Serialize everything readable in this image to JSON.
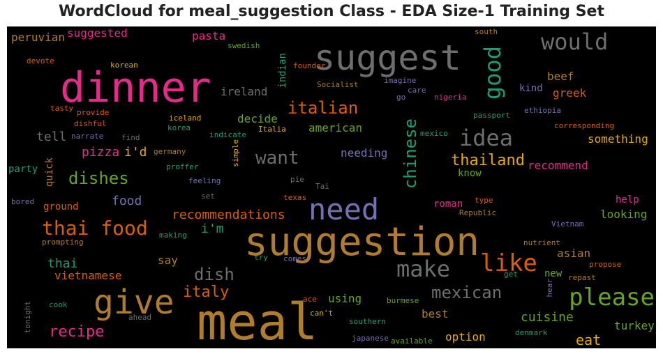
{
  "title": "WordCloud for meal_suggestion Class - EDA Size-1 Training Set",
  "chart_data": {
    "type": "wordcloud",
    "background": "#000000",
    "words": [
      {
        "text": "meal",
        "color": "#b07d2b"
      },
      {
        "text": "suggestion",
        "color": "#b07d2b"
      },
      {
        "text": "suggest",
        "color": "#6e6e6e"
      },
      {
        "text": "dinner",
        "color": "#e7298a"
      },
      {
        "text": "give",
        "color": "#b07d2b"
      },
      {
        "text": "need",
        "color": "#7570b3"
      },
      {
        "text": "please",
        "color": "#66a61e"
      },
      {
        "text": "like",
        "color": "#d95f02"
      },
      {
        "text": "make",
        "color": "#6e6e6e"
      },
      {
        "text": "would",
        "color": "#6e6e6e"
      },
      {
        "text": "good",
        "color": "#1b9e77"
      },
      {
        "text": "idea",
        "color": "#6e6e6e"
      },
      {
        "text": "thai food",
        "color": "#d95f02"
      },
      {
        "text": "italian",
        "color": "#d95f02"
      },
      {
        "text": "want",
        "color": "#6e6e6e"
      },
      {
        "text": "mexican",
        "color": "#6e6e6e"
      },
      {
        "text": "chinese",
        "color": "#1b9e77"
      },
      {
        "text": "thailand",
        "color": "#e6ab02"
      },
      {
        "text": "dishes",
        "color": "#66a61e"
      },
      {
        "text": "dish",
        "color": "#6e6e6e"
      },
      {
        "text": "recipe",
        "color": "#e7298a"
      },
      {
        "text": "italy",
        "color": "#d95f02"
      },
      {
        "text": "recommendations",
        "color": "#d95f02"
      },
      {
        "text": "food",
        "color": "#7570b3"
      },
      {
        "text": "eat",
        "color": "#e6ab02"
      },
      {
        "text": "cuisine",
        "color": "#66a61e"
      },
      {
        "text": "pasta",
        "color": "#e7298a"
      },
      {
        "text": "suggested",
        "color": "#e7298a"
      },
      {
        "text": "peruvian",
        "color": "#b07d2b"
      },
      {
        "text": "ireland",
        "color": "#6e6e6e"
      },
      {
        "text": "decide",
        "color": "#66a61e"
      },
      {
        "text": "american",
        "color": "#66a61e"
      },
      {
        "text": "tell",
        "color": "#6e6e6e"
      },
      {
        "text": "pizza",
        "color": "#e7298a"
      },
      {
        "text": "i'd",
        "color": "#e6ab02"
      },
      {
        "text": "i'm",
        "color": "#1b9e77"
      },
      {
        "text": "thai",
        "color": "#1b9e77"
      },
      {
        "text": "vietnamese",
        "color": "#d95f02"
      },
      {
        "text": "quick",
        "color": "#b07d2b"
      },
      {
        "text": "ground",
        "color": "#d95f02"
      },
      {
        "text": "party",
        "color": "#1b9e77"
      },
      {
        "text": "needing",
        "color": "#7570b3"
      },
      {
        "text": "know",
        "color": "#66a61e"
      },
      {
        "text": "recommend",
        "color": "#e7298a"
      },
      {
        "text": "something",
        "color": "#e6ab02"
      },
      {
        "text": "beef",
        "color": "#b07d2b"
      },
      {
        "text": "kind",
        "color": "#7570b3"
      },
      {
        "text": "greek",
        "color": "#d95f02"
      },
      {
        "text": "roman",
        "color": "#e7298a"
      },
      {
        "text": "help",
        "color": "#e7298a"
      },
      {
        "text": "looking",
        "color": "#66a61e"
      },
      {
        "text": "asian",
        "color": "#b07d2b"
      },
      {
        "text": "new",
        "color": "#66a61e"
      },
      {
        "text": "say",
        "color": "#b07d2b"
      },
      {
        "text": "best",
        "color": "#b07d2b"
      },
      {
        "text": "using",
        "color": "#66a61e"
      },
      {
        "text": "option",
        "color": "#e6ab02"
      },
      {
        "text": "turkey",
        "color": "#66a61e"
      },
      {
        "text": "indian",
        "color": "#1b9e77"
      },
      {
        "text": "swedish",
        "color": "#66a61e"
      },
      {
        "text": "south",
        "color": "#b07d2b"
      },
      {
        "text": "devote",
        "color": "#d95f02"
      },
      {
        "text": "korean",
        "color": "#e6ab02"
      },
      {
        "text": "founder",
        "color": "#d95f02"
      },
      {
        "text": "Socialist",
        "color": "#b07d2b"
      },
      {
        "text": "imagine",
        "color": "#7570b3"
      },
      {
        "text": "care",
        "color": "#7570b3"
      },
      {
        "text": "go",
        "color": "#7570b3"
      },
      {
        "text": "nigeria",
        "color": "#e7298a"
      },
      {
        "text": "passport",
        "color": "#1b9e77"
      },
      {
        "text": "ethiopia",
        "color": "#7570b3"
      },
      {
        "text": "corresponding",
        "color": "#d95f02"
      },
      {
        "text": "tasty",
        "color": "#d95f02"
      },
      {
        "text": "provide",
        "color": "#d95f02"
      },
      {
        "text": "dishful",
        "color": "#d95f02"
      },
      {
        "text": "narrate",
        "color": "#7570b3"
      },
      {
        "text": "find",
        "color": "#6e6e6e"
      },
      {
        "text": "iceland",
        "color": "#e6ab02"
      },
      {
        "text": "korea",
        "color": "#1b9e77"
      },
      {
        "text": "indicate",
        "color": "#1b9e77"
      },
      {
        "text": "Italia",
        "color": "#e6ab02"
      },
      {
        "text": "mexico",
        "color": "#1b9e77"
      },
      {
        "text": "germany",
        "color": "#b07d2b"
      },
      {
        "text": "simple",
        "color": "#e6ab02"
      },
      {
        "text": "proffer",
        "color": "#1b9e77"
      },
      {
        "text": "feeling",
        "color": "#7570b3"
      },
      {
        "text": "pie",
        "color": "#6e6e6e"
      },
      {
        "text": "Tai",
        "color": "#6e6e6e"
      },
      {
        "text": "set",
        "color": "#6e6e6e"
      },
      {
        "text": "texas",
        "color": "#d95f02"
      },
      {
        "text": "type",
        "color": "#d95f02"
      },
      {
        "text": "Republic",
        "color": "#b07d2b"
      },
      {
        "text": "bored",
        "color": "#7570b3"
      },
      {
        "text": "making",
        "color": "#1b9e77"
      },
      {
        "text": "Vietnam",
        "color": "#7570b3"
      },
      {
        "text": "prompting",
        "color": "#b07d2b"
      },
      {
        "text": "nutrient",
        "color": "#b07d2b"
      },
      {
        "text": "propose",
        "color": "#d95f02"
      },
      {
        "text": "try",
        "color": "#1b9e77"
      },
      {
        "text": "comes",
        "color": "#7570b3"
      },
      {
        "text": "get",
        "color": "#1b9e77"
      },
      {
        "text": "repast",
        "color": "#b07d2b"
      },
      {
        "text": "hear",
        "color": "#7570b3"
      },
      {
        "text": "tonight",
        "color": "#6e6e6e"
      },
      {
        "text": "cook",
        "color": "#1b9e77"
      },
      {
        "text": "ahead",
        "color": "#6e6e6e"
      },
      {
        "text": "ace",
        "color": "#d95f02"
      },
      {
        "text": "can't",
        "color": "#e6ab02"
      },
      {
        "text": "burmese",
        "color": "#66a61e"
      },
      {
        "text": "southern",
        "color": "#1b9e77"
      },
      {
        "text": "japanese",
        "color": "#7570b3"
      },
      {
        "text": "available",
        "color": "#66a61e"
      },
      {
        "text": "denmark",
        "color": "#1b9e77"
      }
    ]
  }
}
